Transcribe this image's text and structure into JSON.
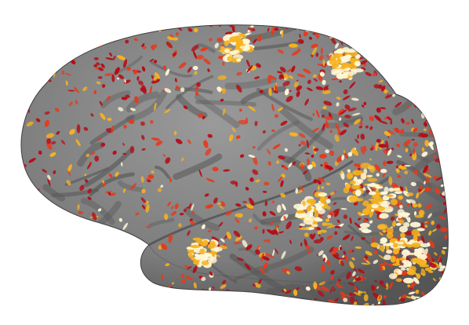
{
  "figure": {
    "subject": "inflated-cortical-surface",
    "colors": {
      "background": "#ffffff",
      "surface_gyri": "#8a8a8a",
      "surface_sulci": "#5a5a5a",
      "surface_edge": "#3f3f3f",
      "activation_low": "#b50d16",
      "activation_mid": "#e8391b",
      "activation_high": "#f7b21e",
      "activation_peak": "#fff7d6"
    }
  }
}
